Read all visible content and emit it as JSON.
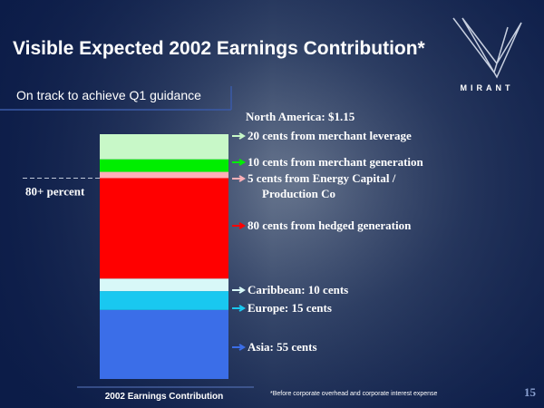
{
  "slide": {
    "title": "Visible Expected 2002 Earnings Contribution*",
    "subtitle": "On track to achieve Q1 guidance",
    "logo": "MIRANT",
    "footnote": "*Before corporate overhead and corporate interest expense",
    "page": "15"
  },
  "chart_data": {
    "type": "bar",
    "stacked": true,
    "categories": [
      "2002 Earnings Contribution"
    ],
    "group_label": "North America: $1.15",
    "bracket_label": "80+ percent",
    "series": [
      {
        "name": "Asia: 55 cents",
        "color": "#3b6ee8",
        "values": [
          55
        ]
      },
      {
        "name": "Europe: 15 cents",
        "color": "#19c8f0",
        "values": [
          15
        ]
      },
      {
        "name": "Caribbean: 10 cents",
        "color": "#d8f8f8",
        "values": [
          10
        ]
      },
      {
        "name": "80 cents from hedged generation",
        "color": "#ff0000",
        "values": [
          80
        ]
      },
      {
        "name": "5 cents from Energy Capital /\nProduction Co",
        "color": "#ffb0b8",
        "values": [
          5
        ]
      },
      {
        "name": "10 cents from merchant generation",
        "color": "#00ee00",
        "values": [
          10
        ]
      },
      {
        "name": "20 cents from merchant leverage",
        "color": "#c8f8c8",
        "values": [
          20
        ]
      }
    ]
  }
}
